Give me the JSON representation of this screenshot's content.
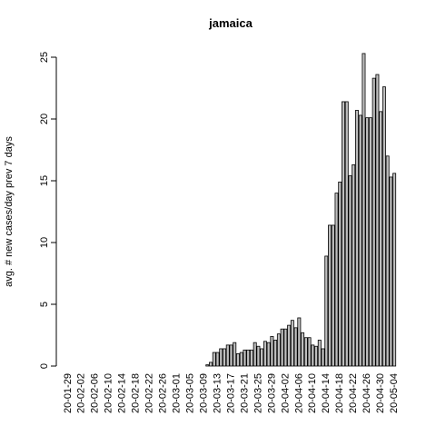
{
  "chart_data": {
    "type": "bar",
    "title": "jamaica",
    "y_label": "avg. # new cases/day prev  7  days",
    "categories": [
      "20-01-29",
      null,
      null,
      null,
      "20-02-02",
      null,
      null,
      null,
      "20-02-06",
      null,
      null,
      null,
      "20-02-10",
      null,
      null,
      null,
      "20-02-14",
      null,
      null,
      null,
      "20-02-18",
      null,
      null,
      null,
      "20-02-22",
      null,
      null,
      null,
      "20-02-26",
      null,
      null,
      null,
      "20-03-01",
      null,
      null,
      null,
      "20-03-05",
      null,
      null,
      null,
      "20-03-09",
      null,
      null,
      null,
      "20-03-13",
      null,
      null,
      null,
      "20-03-17",
      null,
      null,
      null,
      "20-03-21",
      null,
      null,
      null,
      "20-03-25",
      null,
      null,
      null,
      "20-03-29",
      null,
      null,
      null,
      "20-04-02",
      null,
      null,
      null,
      "20-04-06",
      null,
      null,
      null,
      "20-04-10",
      null,
      null,
      null,
      "20-04-14",
      null,
      null,
      null,
      "20-04-18",
      null,
      null,
      null,
      "20-04-22",
      null,
      null,
      null,
      "20-04-26",
      null,
      null,
      null,
      "20-04-30",
      null,
      null,
      null,
      "20-05-04"
    ],
    "values": [
      0,
      0,
      0,
      0,
      0,
      0,
      0,
      0,
      0,
      0,
      0,
      0,
      0,
      0,
      0,
      0,
      0,
      0,
      0,
      0,
      0,
      0,
      0,
      0,
      0,
      0,
      0,
      0,
      0,
      0,
      0,
      0,
      0,
      0,
      0,
      0,
      0,
      0,
      0,
      0,
      0,
      0.1,
      0.3,
      1.1,
      1.1,
      1.4,
      1.4,
      1.7,
      1.7,
      1.9,
      1.0,
      1.1,
      1.3,
      1.3,
      1.3,
      1.9,
      1.6,
      1.4,
      2.0,
      1.9,
      2.4,
      2.1,
      2.6,
      3.0,
      3.0,
      3.3,
      3.7,
      3.1,
      3.9,
      2.7,
      2.3,
      2.3,
      1.7,
      1.6,
      2.1,
      1.4,
      8.9,
      11.4,
      11.4,
      14.0,
      14.9,
      21.4,
      21.4,
      15.4,
      16.3,
      20.7,
      20.3,
      25.3,
      20.1,
      20.1,
      23.3,
      23.6,
      20.6,
      22.6,
      17.0,
      15.3,
      15.6
    ],
    "color": "#bebebe",
    "ylim": [
      0,
      25
    ],
    "yticks": [
      0,
      5,
      10,
      15,
      20,
      25
    ]
  }
}
